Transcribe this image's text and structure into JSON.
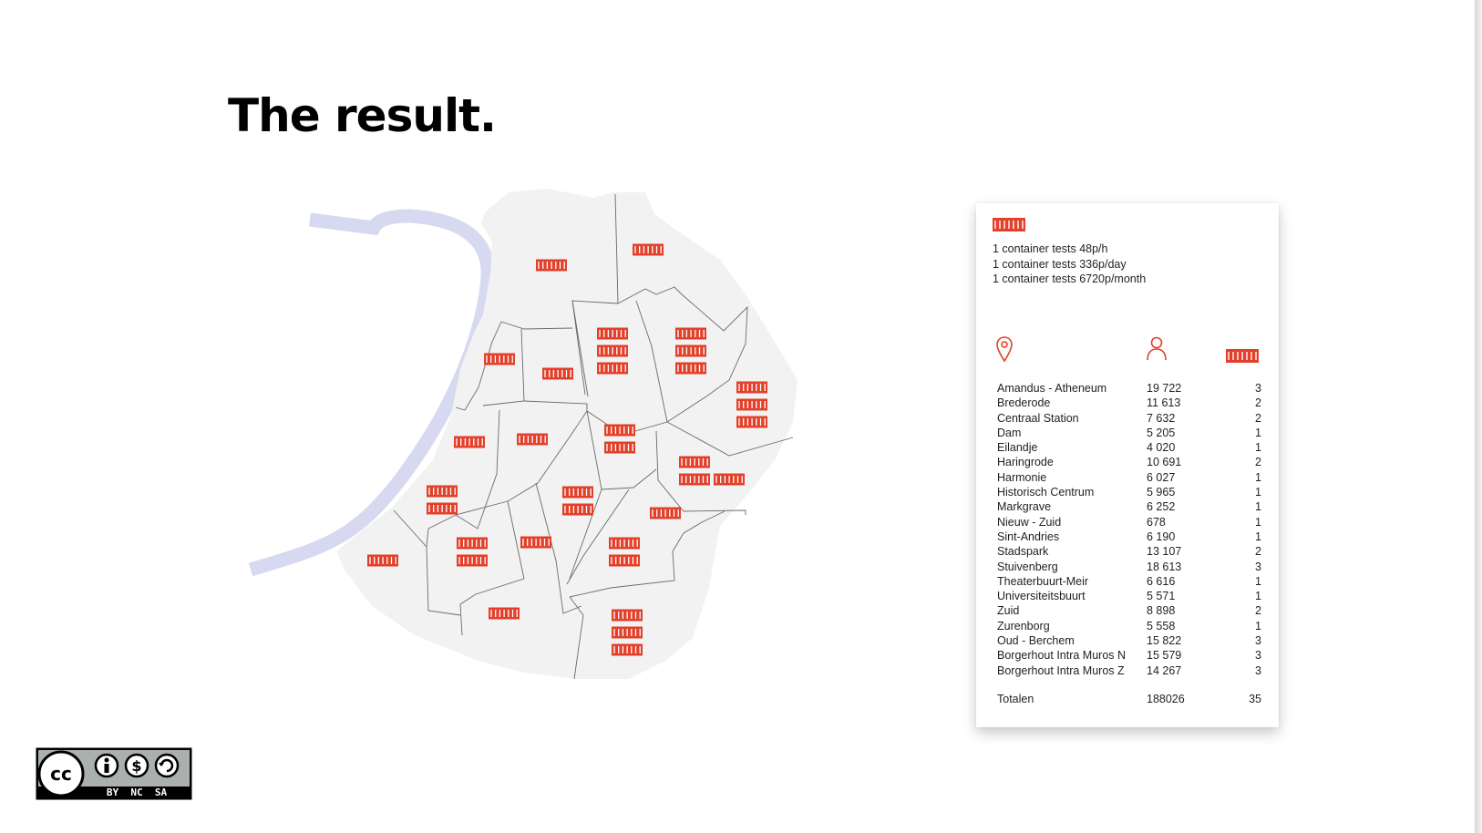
{
  "title": "The result.",
  "colors": {
    "accent": "#e2402a",
    "river": "#d6d9ef",
    "district_fill": "#f2f2f2",
    "district_border": "#6a6a6a"
  },
  "legend": {
    "icon": "container-icon",
    "notes": [
      "1 container tests 48p/h",
      "1 container tests 336p/day",
      "1 container tests 6720p/month"
    ]
  },
  "table": {
    "header_icons": [
      "location-pin-icon",
      "person-icon",
      "container-icon"
    ],
    "rows": [
      {
        "district": "Amandus - Atheneum",
        "population": "19 722",
        "containers": "3"
      },
      {
        "district": "Brederode",
        "population": "11 613",
        "containers": "2"
      },
      {
        "district": "Centraal Station",
        "population": "7 632",
        "containers": "2"
      },
      {
        "district": "Dam",
        "population": "5 205",
        "containers": "1"
      },
      {
        "district": "Eilandje",
        "population": "4 020",
        "containers": "1"
      },
      {
        "district": "Haringrode",
        "population": "10 691",
        "containers": "2"
      },
      {
        "district": "Harmonie",
        "population": "6 027",
        "containers": "1"
      },
      {
        "district": "Historisch Centrum",
        "population": "5 965",
        "containers": "1"
      },
      {
        "district": "Markgrave",
        "population": "6 252",
        "containers": "1"
      },
      {
        "district": "Nieuw - Zuid",
        "population": "678",
        "containers": "1"
      },
      {
        "district": "Sint-Andries",
        "population": "6 190",
        "containers": "1"
      },
      {
        "district": "Stadspark",
        "population": "13 107",
        "containers": "2"
      },
      {
        "district": "Stuivenberg",
        "population": "18 613",
        "containers": "3"
      },
      {
        "district": "Theaterbuurt-Meir",
        "population": "6 616",
        "containers": "1"
      },
      {
        "district": "Universiteitsbuurt",
        "population": "5 571",
        "containers": "1"
      },
      {
        "district": "Zuid",
        "population": "8 898",
        "containers": "2"
      },
      {
        "district": "Zurenborg",
        "population": "5 558",
        "containers": "1"
      },
      {
        "district": "Oud - Berchem",
        "population": "15 822",
        "containers": "3"
      },
      {
        "district": "Borgerhout Intra Muros N",
        "population": "15 579",
        "containers": "3"
      },
      {
        "district": "Borgerhout Intra Muros Z",
        "population": "14 267",
        "containers": "3"
      }
    ],
    "total": {
      "label": "Totalen",
      "population": "188026",
      "containers": "35"
    }
  },
  "license": {
    "icon": "creative-commons-by-nc-sa-icon",
    "badge_text": "BY  NC  SA"
  }
}
